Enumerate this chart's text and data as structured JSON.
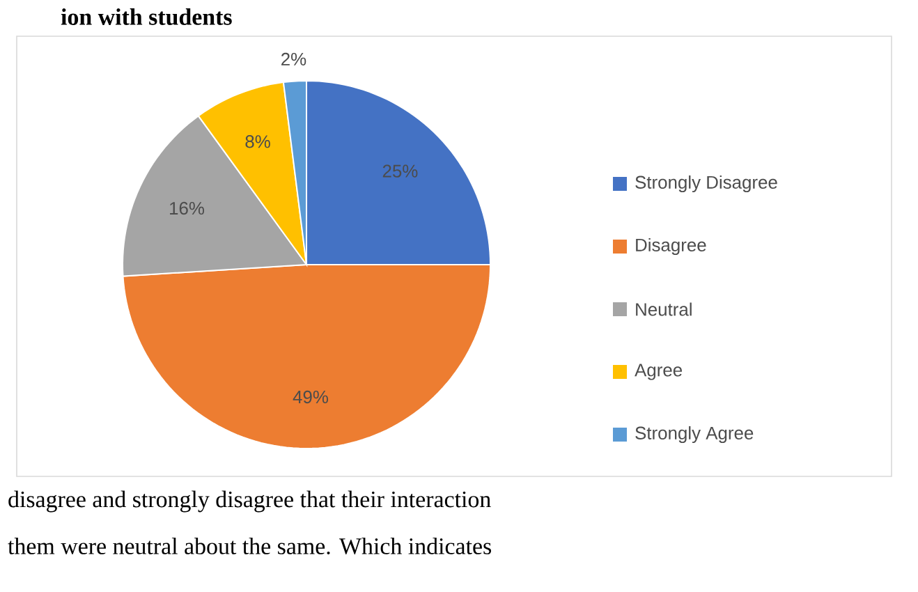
{
  "chart_data": {
    "type": "pie",
    "title": "ion with students",
    "categories": [
      "Strongly Disagree",
      "Disagree",
      "Neutral",
      "Agree",
      "Strongly Agree"
    ],
    "values": [
      25,
      49,
      16,
      8,
      2
    ],
    "value_labels": [
      "25%",
      "49%",
      "16%",
      "8%",
      "2%"
    ],
    "colors": [
      "#4472c4",
      "#ed7d31",
      "#a5a5a5",
      "#ffc000",
      "#5b9bd5"
    ],
    "legend": "right",
    "annotations": [
      "disagree and strongly disagree that their interaction",
      "them were neutral about the same. Which indicates"
    ]
  }
}
